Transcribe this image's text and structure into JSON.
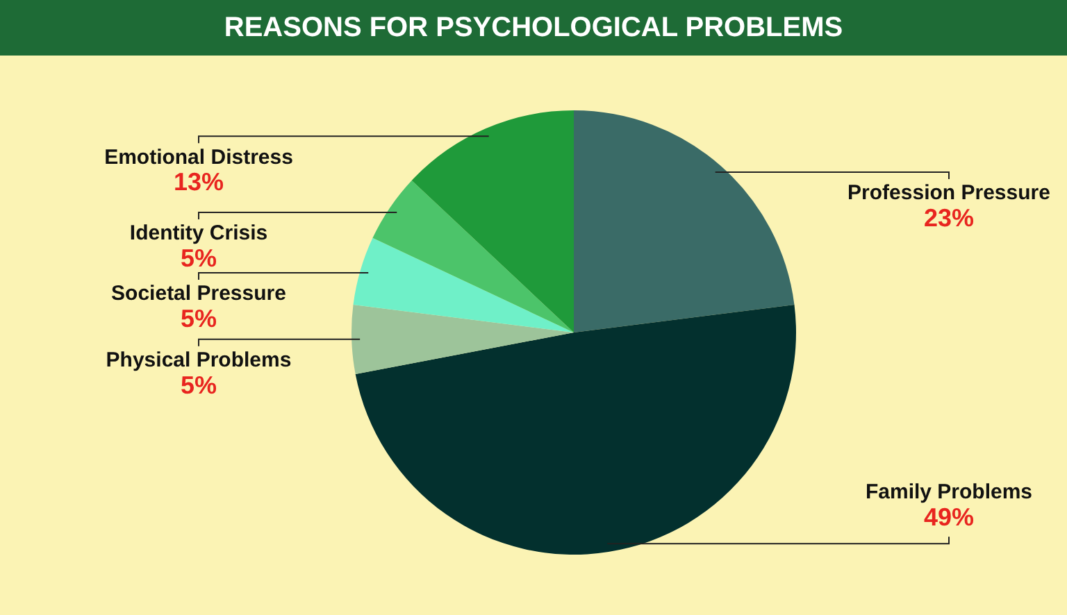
{
  "chart_data": {
    "type": "pie",
    "title": "REASONS FOR PSYCHOLOGICAL PROBLEMS",
    "categories": [
      "Profession Pressure",
      "Family Problems",
      "Physical Problems",
      "Societal Pressure",
      "Identity Crisis",
      "Emotional Distress"
    ],
    "values": [
      23,
      49,
      5,
      5,
      5,
      13
    ],
    "value_labels": [
      "23%",
      "49%",
      "5%",
      "5%",
      "5%",
      "13%"
    ],
    "colors": [
      "#3a6b67",
      "#03302e",
      "#9dc49a",
      "#6ff0c8",
      "#4cc46a",
      "#1f9a3a"
    ],
    "legend": false
  }
}
